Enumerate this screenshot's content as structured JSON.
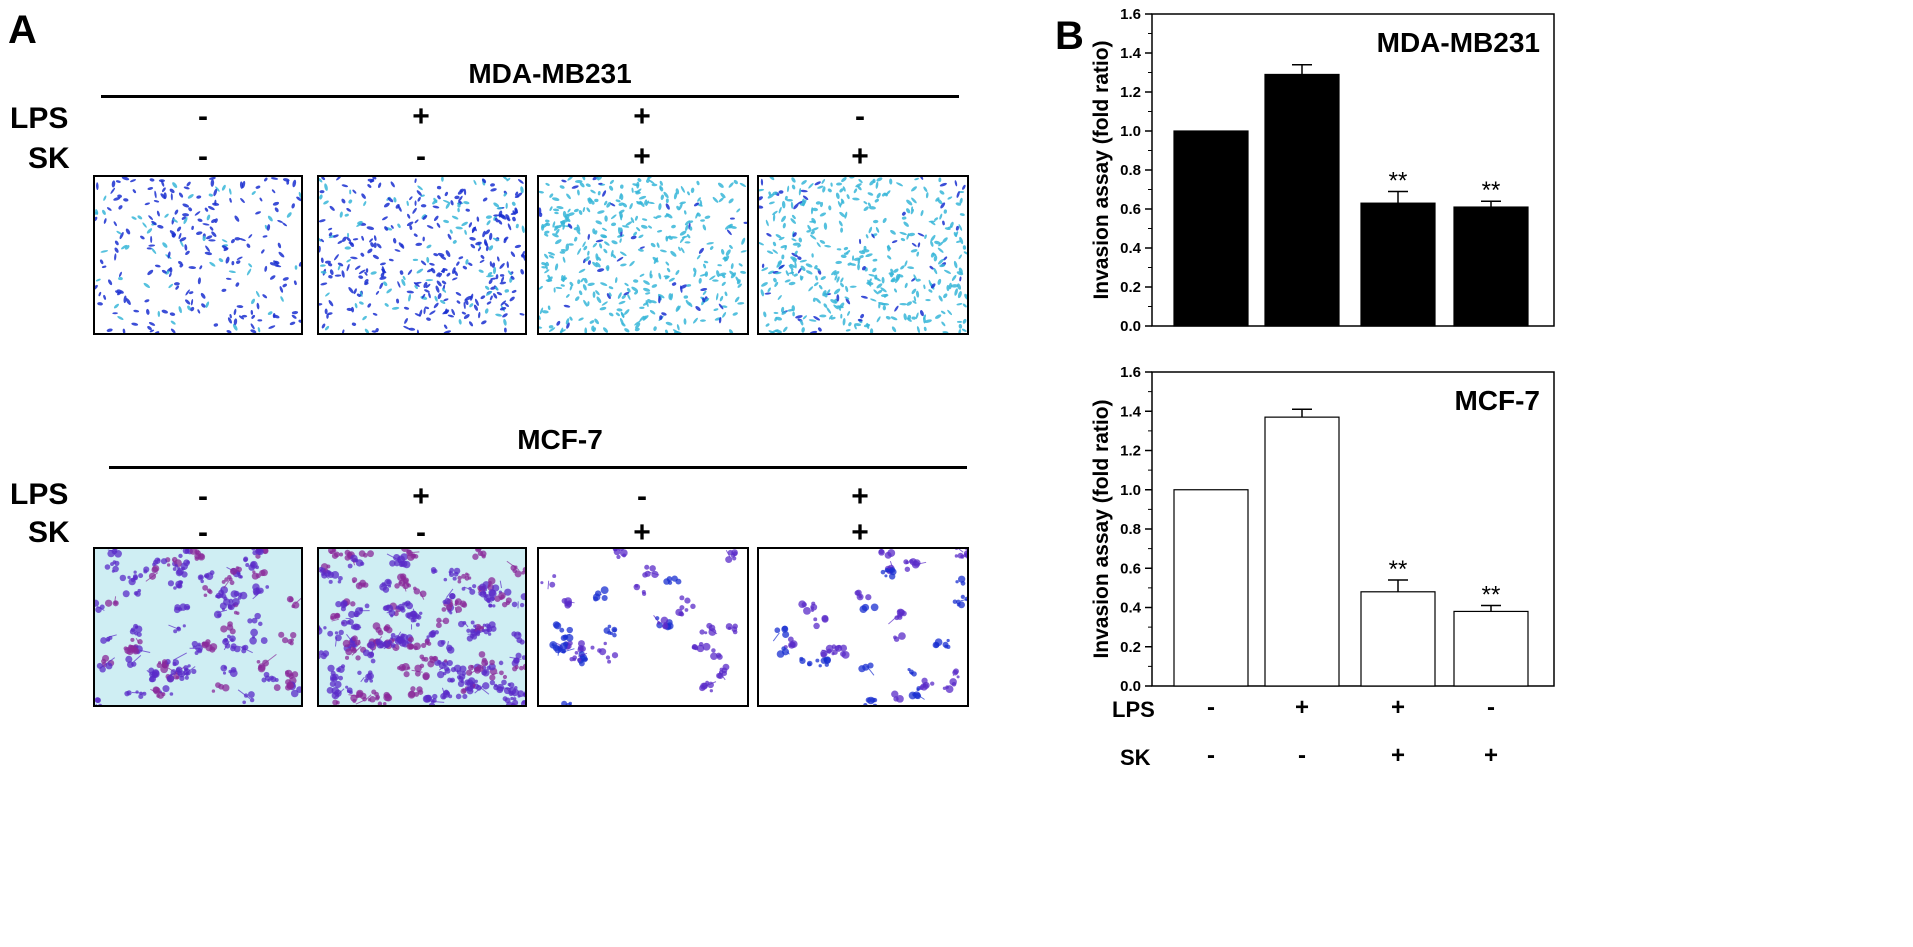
{
  "panel_a": {
    "letter": "A",
    "groups": [
      {
        "title": "MDA-MB231",
        "rows": [
          {
            "label": "LPS",
            "signs": [
              "-",
              "+",
              "+",
              "-"
            ]
          },
          {
            "label": "SK",
            "signs": [
              "-",
              "-",
              "+",
              "+"
            ]
          }
        ],
        "image_style": "sparse-cells",
        "densities": [
          "medium",
          "high",
          "light-dense",
          "light-dense"
        ]
      },
      {
        "title": "MCF-7",
        "rows": [
          {
            "label": "LPS",
            "signs": [
              "-",
              "+",
              "-",
              "+"
            ]
          },
          {
            "label": "SK",
            "signs": [
              "-",
              "-",
              "+",
              "+"
            ]
          }
        ],
        "image_style": "clustered-cells",
        "densities": [
          "high",
          "very-high",
          "low",
          "low"
        ]
      }
    ]
  },
  "panel_b": {
    "letter": "B",
    "x_rows": [
      {
        "label": "LPS",
        "signs": [
          "-",
          "+",
          "+",
          "-"
        ]
      },
      {
        "label": "SK",
        "signs": [
          "-",
          "-",
          "+",
          "+"
        ]
      }
    ]
  },
  "chart_data": [
    {
      "type": "bar",
      "title": "MDA-MB231",
      "ylabel": "Invasion assay (fold ratio)",
      "ylim": [
        0,
        1.6
      ],
      "yticks": [
        "0.0",
        "0.2",
        "0.4",
        "0.6",
        "0.8",
        "1.0",
        "1.2",
        "1.4",
        "1.6"
      ],
      "bar_color": "#000000",
      "values": [
        1.0,
        1.29,
        0.63,
        0.61
      ],
      "errors": [
        0,
        0.05,
        0.06,
        0.03
      ],
      "annotations": [
        "",
        "",
        "**",
        "**"
      ],
      "grid": false
    },
    {
      "type": "bar",
      "title": "MCF-7",
      "ylabel": "Invasion assay (fold ratio)",
      "ylim": [
        0,
        1.6
      ],
      "yticks": [
        "0.0",
        "0.2",
        "0.4",
        "0.6",
        "0.8",
        "1.0",
        "1.2",
        "1.4",
        "1.6"
      ],
      "bar_color": "#ffffff",
      "values": [
        1.0,
        1.37,
        0.48,
        0.38
      ],
      "errors": [
        0,
        0.04,
        0.06,
        0.03
      ],
      "annotations": [
        "",
        "",
        "**",
        "**"
      ],
      "grid": false
    }
  ],
  "colors": {
    "cell_stain_dark": "#1a2fd0",
    "cell_stain_light": "#37b6d8",
    "cluster_purple": "#5a2bc8",
    "cluster_magenta": "#8a2a9a",
    "background_cyan": "#cfeef3"
  }
}
